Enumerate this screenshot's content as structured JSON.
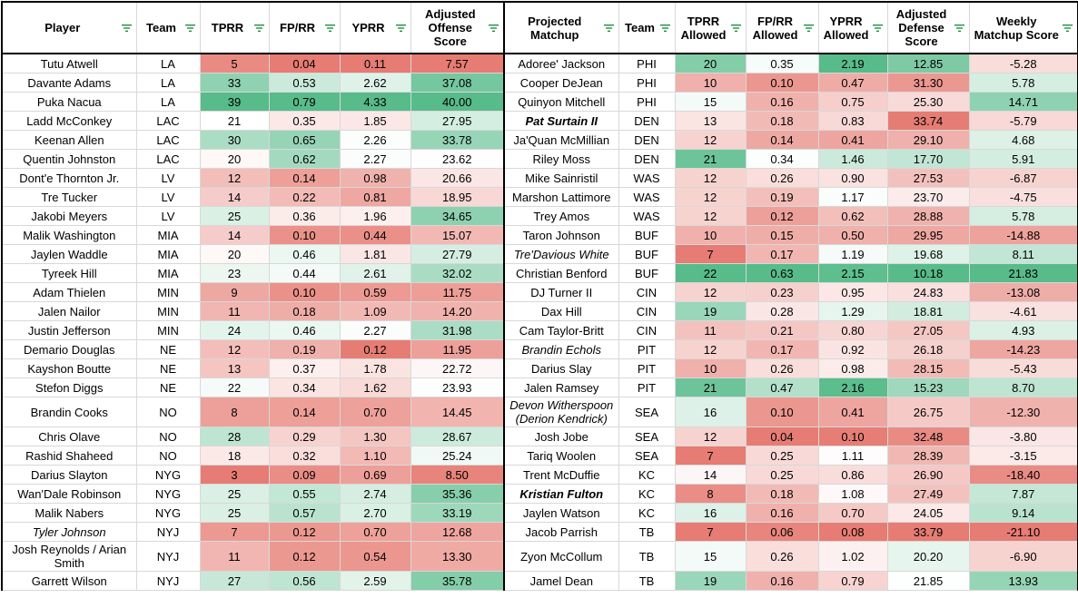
{
  "colors": {
    "red_strong": "#e67c73",
    "white": "#ffffff",
    "green_strong": "#57bb8a",
    "header_border": "#000000"
  },
  "headers": {
    "offense": [
      "Player",
      "Team",
      "TPRR",
      "FP/RR",
      "YPRR",
      "Adjusted Offense Score"
    ],
    "defense": [
      "Projected Matchup",
      "Team",
      "TPRR Allowed",
      "FP/RR Allowed",
      "YPRR Allowed",
      "Adjusted Defense Score",
      "Weekly Matchup Score"
    ]
  },
  "rows": [
    {
      "player": "Tutu Atwell",
      "team": "LA",
      "tprr": "5",
      "fprr": "0.04",
      "yprr": "0.11",
      "aos": "7.57",
      "matchup": "Adoree' Jackson",
      "dteam": "PHI",
      "tprra": "20",
      "fprra": "0.35",
      "yprra": "2.19",
      "ads": "12.85",
      "wms": "-5.28"
    },
    {
      "player": "Davante Adams",
      "team": "LA",
      "tprr": "33",
      "fprr": "0.53",
      "yprr": "2.62",
      "aos": "37.08",
      "matchup": "Cooper DeJean",
      "dteam": "PHI",
      "tprra": "10",
      "fprra": "0.10",
      "yprra": "0.47",
      "ads": "31.30",
      "wms": "5.78"
    },
    {
      "player": "Puka Nacua",
      "team": "LA",
      "tprr": "39",
      "fprr": "0.79",
      "yprr": "4.33",
      "aos": "40.00",
      "matchup": "Quinyon Mitchell",
      "dteam": "PHI",
      "tprra": "15",
      "fprra": "0.16",
      "yprra": "0.75",
      "ads": "25.30",
      "wms": "14.71"
    },
    {
      "player": "Ladd McConkey",
      "team": "LAC",
      "tprr": "21",
      "fprr": "0.35",
      "yprr": "1.85",
      "aos": "27.95",
      "matchup": "Pat Surtain II",
      "matchup_style": "bold italic",
      "dteam": "DEN",
      "tprra": "13",
      "fprra": "0.18",
      "yprra": "0.83",
      "ads": "33.74",
      "wms": "-5.79"
    },
    {
      "player": "Keenan Allen",
      "team": "LAC",
      "tprr": "30",
      "fprr": "0.65",
      "yprr": "2.26",
      "aos": "33.78",
      "matchup": "Ja'Quan McMillian",
      "dteam": "DEN",
      "tprra": "12",
      "fprra": "0.14",
      "yprra": "0.41",
      "ads": "29.10",
      "wms": "4.68"
    },
    {
      "player": "Quentin Johnston",
      "team": "LAC",
      "tprr": "20",
      "fprr": "0.62",
      "yprr": "2.27",
      "aos": "23.62",
      "matchup": "Riley Moss",
      "dteam": "DEN",
      "tprra": "21",
      "fprra": "0.34",
      "yprra": "1.46",
      "ads": "17.70",
      "wms": "5.91"
    },
    {
      "player": "Dont'e Thornton Jr.",
      "team": "LV",
      "tprr": "12",
      "fprr": "0.14",
      "yprr": "0.98",
      "aos": "20.66",
      "matchup": "Mike Sainristil",
      "dteam": "WAS",
      "tprra": "12",
      "fprra": "0.26",
      "yprra": "0.90",
      "ads": "27.53",
      "wms": "-6.87"
    },
    {
      "player": "Tre Tucker",
      "team": "LV",
      "tprr": "14",
      "fprr": "0.22",
      "yprr": "0.81",
      "aos": "18.95",
      "matchup": "Marshon Lattimore",
      "dteam": "WAS",
      "tprra": "12",
      "fprra": "0.19",
      "yprra": "1.17",
      "ads": "23.70",
      "wms": "-4.75"
    },
    {
      "player": "Jakobi Meyers",
      "team": "LV",
      "tprr": "25",
      "fprr": "0.36",
      "yprr": "1.96",
      "aos": "34.65",
      "matchup": "Trey Amos",
      "dteam": "WAS",
      "tprra": "12",
      "fprra": "0.12",
      "yprra": "0.62",
      "ads": "28.88",
      "wms": "5.78"
    },
    {
      "player": "Malik Washington",
      "team": "MIA",
      "tprr": "14",
      "fprr": "0.10",
      "yprr": "0.44",
      "aos": "15.07",
      "matchup": "Taron Johnson",
      "dteam": "BUF",
      "tprra": "10",
      "fprra": "0.15",
      "yprra": "0.50",
      "ads": "29.95",
      "wms": "-14.88"
    },
    {
      "player": "Jaylen Waddle",
      "team": "MIA",
      "tprr": "20",
      "fprr": "0.46",
      "yprr": "1.81",
      "aos": "27.79",
      "matchup": "Tre'Davious White",
      "matchup_style": "italic",
      "dteam": "BUF",
      "tprra": "7",
      "fprra": "0.17",
      "yprra": "1.19",
      "ads": "19.68",
      "wms": "8.11"
    },
    {
      "player": "Tyreek Hill",
      "team": "MIA",
      "tprr": "23",
      "fprr": "0.44",
      "yprr": "2.61",
      "aos": "32.02",
      "matchup": "Christian Benford",
      "dteam": "BUF",
      "tprra": "22",
      "fprra": "0.63",
      "yprra": "2.15",
      "ads": "10.18",
      "wms": "21.83"
    },
    {
      "player": "Adam Thielen",
      "team": "MIN",
      "tprr": "9",
      "fprr": "0.10",
      "yprr": "0.59",
      "aos": "11.75",
      "matchup": "DJ Turner II",
      "dteam": "CIN",
      "tprra": "12",
      "fprra": "0.23",
      "yprra": "0.95",
      "ads": "24.83",
      "wms": "-13.08"
    },
    {
      "player": "Jalen Nailor",
      "team": "MIN",
      "tprr": "11",
      "fprr": "0.18",
      "yprr": "1.09",
      "aos": "14.20",
      "matchup": "Dax Hill",
      "dteam": "CIN",
      "tprra": "19",
      "fprra": "0.28",
      "yprra": "1.29",
      "ads": "18.81",
      "wms": "-4.61"
    },
    {
      "player": "Justin Jefferson",
      "team": "MIN",
      "tprr": "24",
      "fprr": "0.46",
      "yprr": "2.27",
      "aos": "31.98",
      "matchup": "Cam Taylor-Britt",
      "dteam": "CIN",
      "tprra": "11",
      "fprra": "0.21",
      "yprra": "0.80",
      "ads": "27.05",
      "wms": "4.93"
    },
    {
      "player": "Demario Douglas",
      "team": "NE",
      "tprr": "12",
      "fprr": "0.19",
      "yprr": "0.12",
      "aos": "11.95",
      "matchup": "Brandin Echols",
      "matchup_style": "italic",
      "dteam": "PIT",
      "tprra": "12",
      "fprra": "0.17",
      "yprra": "0.92",
      "ads": "26.18",
      "wms": "-14.23"
    },
    {
      "player": "Kayshon Boutte",
      "team": "NE",
      "tprr": "13",
      "fprr": "0.37",
      "yprr": "1.78",
      "aos": "22.72",
      "matchup": "Darius Slay",
      "dteam": "PIT",
      "tprra": "10",
      "fprra": "0.26",
      "yprra": "0.98",
      "ads": "28.15",
      "wms": "-5.43"
    },
    {
      "player": "Stefon Diggs",
      "team": "NE",
      "tprr": "22",
      "fprr": "0.34",
      "yprr": "1.62",
      "aos": "23.93",
      "matchup": "Jalen Ramsey",
      "dteam": "PIT",
      "tprra": "21",
      "fprra": "0.47",
      "yprra": "2.16",
      "ads": "15.23",
      "wms": "8.70"
    },
    {
      "player": "Brandin Cooks",
      "team": "NO",
      "tprr": "8",
      "fprr": "0.14",
      "yprr": "0.70",
      "aos": "14.45",
      "matchup": "Devon Witherspoon (Derion Kendrick)",
      "matchup_style": "italic",
      "dteam": "SEA",
      "tprra": "16",
      "fprra": "0.10",
      "yprra": "0.41",
      "ads": "26.75",
      "wms": "-12.30",
      "tall": true
    },
    {
      "player": "Chris Olave",
      "team": "NO",
      "tprr": "28",
      "fprr": "0.29",
      "yprr": "1.30",
      "aos": "28.67",
      "matchup": "Josh Jobe",
      "dteam": "SEA",
      "tprra": "12",
      "fprra": "0.04",
      "yprra": "0.10",
      "ads": "32.48",
      "wms": "-3.80"
    },
    {
      "player": "Rashid Shaheed",
      "team": "NO",
      "tprr": "18",
      "fprr": "0.32",
      "yprr": "1.10",
      "aos": "25.24",
      "matchup": "Tariq Woolen",
      "dteam": "SEA",
      "tprra": "7",
      "fprra": "0.25",
      "yprra": "1.11",
      "ads": "28.39",
      "wms": "-3.15"
    },
    {
      "player": "Darius Slayton",
      "team": "NYG",
      "tprr": "3",
      "fprr": "0.09",
      "yprr": "0.69",
      "aos": "8.50",
      "matchup": "Trent McDuffie",
      "dteam": "KC",
      "tprra": "14",
      "fprra": "0.25",
      "yprra": "0.86",
      "ads": "26.90",
      "wms": "-18.40"
    },
    {
      "player": "Wan'Dale Robinson",
      "team": "NYG",
      "tprr": "25",
      "fprr": "0.55",
      "yprr": "2.74",
      "aos": "35.36",
      "matchup": "Kristian Fulton",
      "matchup_style": "bold italic",
      "dteam": "KC",
      "tprra": "8",
      "fprra": "0.18",
      "yprra": "1.08",
      "ads": "27.49",
      "wms": "7.87"
    },
    {
      "player": "Malik Nabers",
      "team": "NYG",
      "tprr": "25",
      "fprr": "0.57",
      "yprr": "2.70",
      "aos": "33.19",
      "matchup": "Jaylen Watson",
      "dteam": "KC",
      "tprra": "16",
      "fprra": "0.16",
      "yprra": "0.70",
      "ads": "24.05",
      "wms": "9.14"
    },
    {
      "player": "Tyler Johnson",
      "player_style": "italic",
      "team": "NYJ",
      "tprr": "7",
      "fprr": "0.12",
      "yprr": "0.70",
      "aos": "12.68",
      "matchup": "Jacob Parrish",
      "dteam": "TB",
      "tprra": "7",
      "fprra": "0.06",
      "yprra": "0.08",
      "ads": "33.79",
      "wms": "-21.10"
    },
    {
      "player": "Josh Reynolds / Arian Smith",
      "team": "NYJ",
      "tprr": "11",
      "fprr": "0.12",
      "yprr": "0.54",
      "aos": "13.30",
      "matchup": "Zyon McCollum",
      "dteam": "TB",
      "tprra": "15",
      "fprra": "0.26",
      "yprra": "1.02",
      "ads": "20.20",
      "wms": "-6.90",
      "tall": true
    },
    {
      "player": "Garrett Wilson",
      "team": "NYJ",
      "tprr": "27",
      "fprr": "0.56",
      "yprr": "2.59",
      "aos": "35.78",
      "matchup": "Jamel Dean",
      "dteam": "TB",
      "tprra": "19",
      "fprra": "0.16",
      "yprra": "0.79",
      "ads": "21.85",
      "wms": "13.93"
    }
  ]
}
